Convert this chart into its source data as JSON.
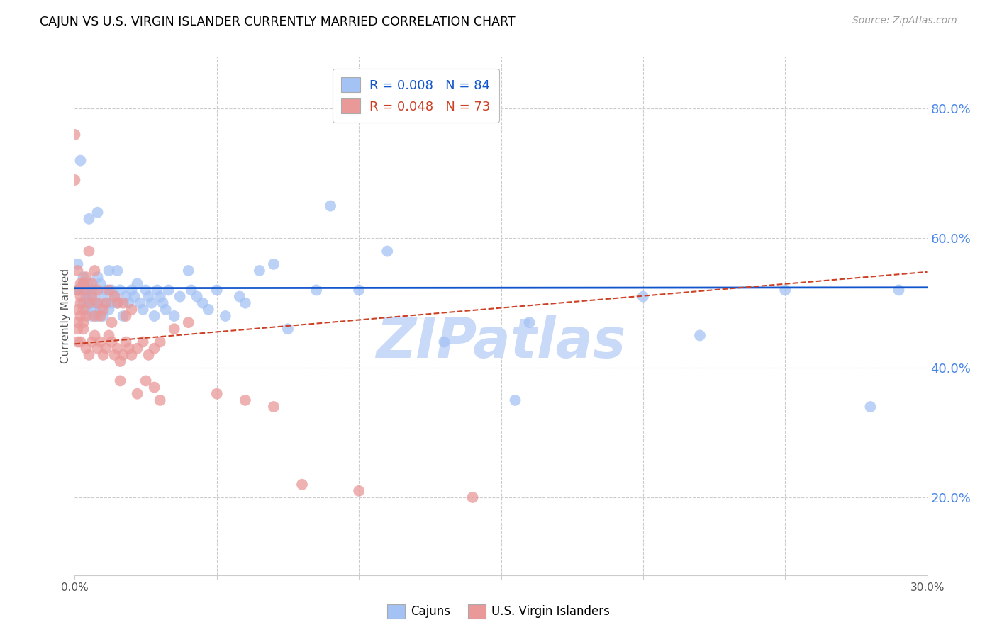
{
  "title": "CAJUN VS U.S. VIRGIN ISLANDER CURRENTLY MARRIED CORRELATION CHART",
  "source": "Source: ZipAtlas.com",
  "ylabel": "Currently Married",
  "x_min": 0.0,
  "x_max": 0.3,
  "y_min": 0.08,
  "y_max": 0.88,
  "cajun_R": 0.008,
  "cajun_N": 84,
  "vi_R": 0.048,
  "vi_N": 73,
  "cajun_color": "#a4c2f4",
  "vi_color": "#ea9999",
  "cajun_line_color": "#1155cc",
  "vi_line_color": "#cc4125",
  "background_color": "#ffffff",
  "grid_color": "#cccccc",
  "watermark": "ZIPatlas",
  "watermark_color": "#c9daf8",
  "legend_label_cajun": "Cajuns",
  "legend_label_vi": "U.S. Virgin Islanders",
  "title_color": "#000000",
  "source_color": "#999999",
  "right_axis_color": "#4a86e8",
  "cajun_line_y0": 0.523,
  "cajun_line_y1": 0.524,
  "vi_line_y0": 0.437,
  "vi_line_y1": 0.548,
  "cajun_scatter_x": [
    0.001,
    0.001,
    0.002,
    0.002,
    0.003,
    0.003,
    0.003,
    0.003,
    0.004,
    0.004,
    0.004,
    0.005,
    0.005,
    0.005,
    0.005,
    0.005,
    0.006,
    0.006,
    0.006,
    0.006,
    0.007,
    0.007,
    0.007,
    0.008,
    0.008,
    0.008,
    0.008,
    0.009,
    0.009,
    0.01,
    0.01,
    0.011,
    0.011,
    0.012,
    0.012,
    0.013,
    0.013,
    0.014,
    0.015,
    0.015,
    0.016,
    0.017,
    0.018,
    0.019,
    0.02,
    0.021,
    0.022,
    0.023,
    0.024,
    0.025,
    0.026,
    0.027,
    0.028,
    0.029,
    0.03,
    0.031,
    0.032,
    0.033,
    0.035,
    0.037,
    0.04,
    0.041,
    0.043,
    0.045,
    0.047,
    0.05,
    0.053,
    0.058,
    0.06,
    0.065,
    0.07,
    0.075,
    0.085,
    0.1,
    0.13,
    0.155,
    0.2,
    0.22,
    0.25,
    0.28,
    0.09,
    0.11,
    0.16,
    0.29
  ],
  "cajun_scatter_y": [
    0.52,
    0.56,
    0.52,
    0.72,
    0.5,
    0.52,
    0.53,
    0.54,
    0.49,
    0.51,
    0.52,
    0.5,
    0.51,
    0.52,
    0.53,
    0.63,
    0.48,
    0.5,
    0.51,
    0.52,
    0.49,
    0.5,
    0.52,
    0.48,
    0.5,
    0.54,
    0.64,
    0.49,
    0.53,
    0.48,
    0.51,
    0.5,
    0.52,
    0.49,
    0.55,
    0.5,
    0.52,
    0.51,
    0.5,
    0.55,
    0.52,
    0.48,
    0.51,
    0.5,
    0.52,
    0.51,
    0.53,
    0.5,
    0.49,
    0.52,
    0.51,
    0.5,
    0.48,
    0.52,
    0.51,
    0.5,
    0.49,
    0.52,
    0.48,
    0.51,
    0.55,
    0.52,
    0.51,
    0.5,
    0.49,
    0.52,
    0.48,
    0.51,
    0.5,
    0.55,
    0.56,
    0.46,
    0.52,
    0.52,
    0.44,
    0.35,
    0.51,
    0.45,
    0.52,
    0.34,
    0.65,
    0.58,
    0.47,
    0.52
  ],
  "vi_scatter_x": [
    0.0,
    0.0,
    0.001,
    0.001,
    0.001,
    0.001,
    0.001,
    0.002,
    0.002,
    0.002,
    0.002,
    0.003,
    0.003,
    0.003,
    0.004,
    0.004,
    0.004,
    0.005,
    0.005,
    0.006,
    0.006,
    0.007,
    0.007,
    0.008,
    0.008,
    0.009,
    0.01,
    0.011,
    0.012,
    0.013,
    0.014,
    0.015,
    0.016,
    0.017,
    0.018,
    0.02,
    0.022,
    0.025,
    0.028,
    0.03,
    0.001,
    0.002,
    0.003,
    0.004,
    0.005,
    0.006,
    0.007,
    0.008,
    0.009,
    0.01,
    0.011,
    0.012,
    0.013,
    0.014,
    0.015,
    0.016,
    0.017,
    0.018,
    0.019,
    0.02,
    0.022,
    0.024,
    0.026,
    0.028,
    0.03,
    0.035,
    0.04,
    0.05,
    0.06,
    0.07,
    0.08,
    0.1,
    0.14
  ],
  "vi_scatter_y": [
    0.76,
    0.69,
    0.55,
    0.52,
    0.49,
    0.47,
    0.44,
    0.51,
    0.48,
    0.5,
    0.53,
    0.49,
    0.47,
    0.53,
    0.48,
    0.52,
    0.54,
    0.5,
    0.58,
    0.51,
    0.53,
    0.48,
    0.55,
    0.5,
    0.52,
    0.48,
    0.49,
    0.5,
    0.52,
    0.47,
    0.51,
    0.5,
    0.38,
    0.5,
    0.48,
    0.49,
    0.36,
    0.38,
    0.37,
    0.35,
    0.46,
    0.44,
    0.46,
    0.43,
    0.42,
    0.44,
    0.45,
    0.43,
    0.44,
    0.42,
    0.43,
    0.45,
    0.44,
    0.42,
    0.43,
    0.41,
    0.42,
    0.44,
    0.43,
    0.42,
    0.43,
    0.44,
    0.42,
    0.43,
    0.44,
    0.46,
    0.47,
    0.36,
    0.35,
    0.34,
    0.22,
    0.21,
    0.2
  ]
}
